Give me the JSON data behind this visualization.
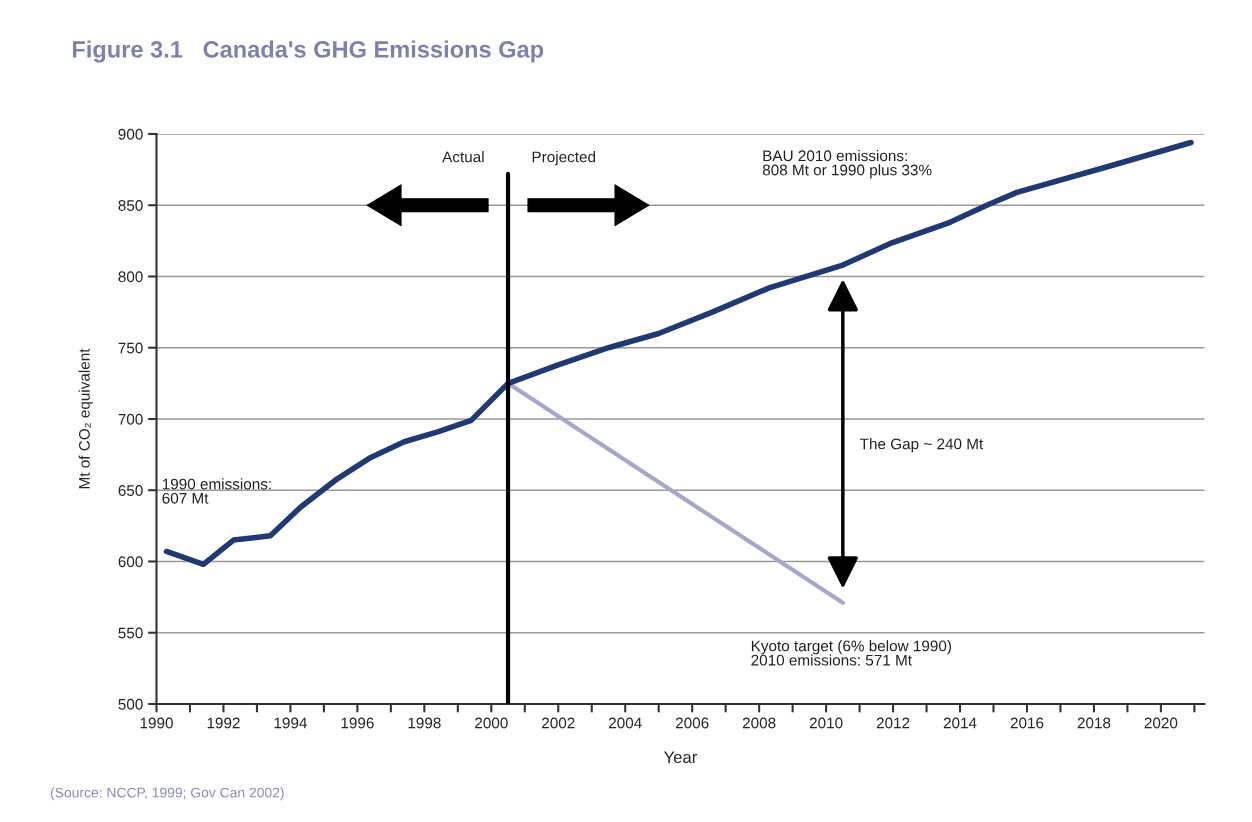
{
  "chart_data": {
    "type": "line",
    "title": "Figure 3.1   Canada's GHG Emissions Gap",
    "xlabel": "Year",
    "ylabel": "Mt of CO₂ equivalent",
    "series": [
      {
        "color": "#1f3a73",
        "x": [
          1990.3,
          1991.4,
          1992.3,
          1993.4,
          1994.3,
          1995.4,
          1996.4,
          1997.4,
          1998.4,
          1999.4,
          2000.5,
          2002,
          2003.5,
          2005,
          2006.6,
          2008.3,
          2010.5,
          2011.9,
          2013.7,
          2014.8,
          2015.7,
          2018.4,
          2020.9
        ],
        "values": [
          607,
          598,
          615,
          618,
          638,
          658,
          673,
          684,
          691,
          699,
          725,
          738,
          750,
          760,
          775,
          792,
          808,
          823,
          838,
          850,
          859,
          877,
          894
        ]
      },
      {
        "color": "#a5a8cc",
        "x": [
          2000.5,
          2010.5
        ],
        "values": [
          725,
          571
        ]
      }
    ],
    "xlim": [
      1990,
      2021.3
    ],
    "ylim": [
      500,
      900
    ],
    "xticks": [
      1990,
      {
        "value": 1991,
        "label": null
      },
      1992,
      {
        "value": 1993,
        "label": null
      },
      1994,
      {
        "value": 1995,
        "label": null
      },
      1996,
      {
        "value": 1997,
        "label": null
      },
      1998,
      {
        "value": 1999,
        "label": null
      },
      2000,
      {
        "value": 2001,
        "label": null
      },
      2002,
      {
        "value": 2003,
        "label": null
      },
      2004,
      {
        "value": 2005,
        "label": null
      },
      2006,
      {
        "value": 2007,
        "label": null
      },
      2008,
      {
        "value": 2009,
        "label": null
      },
      2010,
      {
        "value": 2011,
        "label": null
      },
      2012,
      {
        "value": 2013,
        "label": null
      },
      2014,
      {
        "value": 2015,
        "label": null
      },
      2016,
      {
        "value": 2017,
        "label": null
      },
      2018,
      {
        "value": 2019,
        "label": null
      },
      2020,
      {
        "value": 2021,
        "label": null
      }
    ],
    "yticks": [
      500,
      550,
      600,
      650,
      700,
      750,
      800,
      850,
      900
    ],
    "grid": "y",
    "marker": "none",
    "line_style": "solid",
    "ref_lines": [
      {
        "axis": "x",
        "value": 2000.5,
        "color": "#000000"
      }
    ],
    "annotations": [
      "1990 emissions:\n607 Mt",
      "BAU 2010 emissions:\n808 Mt or 1990 plus 33%",
      "Kyoto target (6% below 1990)\n2010 emissions: 571 Mt",
      "The Gap ~ 240 Mt",
      "Actual",
      "Projected",
      "(Source: NCCP, 1999; Gov Can 2002)"
    ]
  }
}
